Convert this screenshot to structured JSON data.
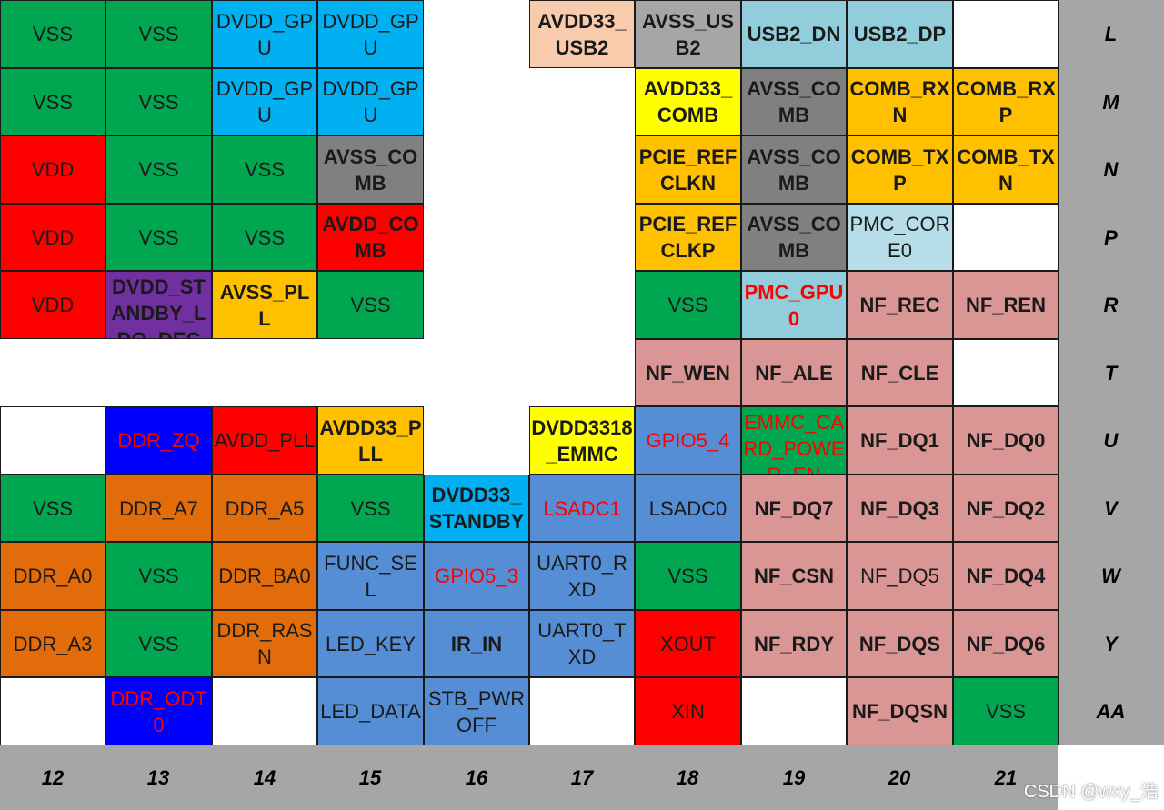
{
  "colors": {
    "green": "#00a650",
    "lightblue": "#00b0f0",
    "peach": "#f8cbad",
    "gray": "#a6a6a6",
    "darkgray": "#808080",
    "skyblue": "#92cddc",
    "paleblue": "#b7dde8",
    "white": "#ffffff",
    "yellow": "#ffff00",
    "gold": "#ffc000",
    "red": "#ff0000",
    "purple": "#7030a0",
    "pink": "#d99694",
    "blue": "#0000ff",
    "orange": "#e26b0a",
    "steel": "#558ed5",
    "textred": "#ff0000",
    "textdark": "#1a1a1a"
  },
  "columns": [
    "12",
    "13",
    "14",
    "15",
    "16",
    "17",
    "18",
    "19",
    "20",
    "21"
  ],
  "rows": [
    "L",
    "M",
    "N",
    "P",
    "R",
    "T",
    "U",
    "V",
    "W",
    "Y",
    "AA"
  ],
  "cells": [
    [
      "VSS|green|n|d",
      "VSS|green|n|d",
      "DVDD_GPU|lightblue|n|d",
      "DVDD_GPU|lightblue|n|d",
      null,
      "AVDD33_USB2|peach|b|d",
      "AVSS_USB2|gray|b|d",
      "USB2_DN|skyblue|b|d",
      "USB2_DP|skyblue|b|d",
      "|white|n|d"
    ],
    [
      "VSS|green|n|d",
      "VSS|green|n|d",
      "DVDD_GPU|lightblue|n|d",
      "DVDD_GPU|lightblue|n|d",
      null,
      null,
      "AVDD33_COMB|yellow|b|d",
      "AVSS_COMB|darkgray|b|d",
      "COMB_RXN|gold|b|d",
      "COMB_RXP|gold|b|d"
    ],
    [
      "VDD|red|n|d",
      "VSS|green|n|d",
      "VSS|green|n|d",
      "AVSS_COMB|darkgray|b|d",
      null,
      null,
      "PCIE_REFCLKN|gold|b|d",
      "AVSS_COMB|darkgray|b|d",
      "COMB_TXP|gold|b|d",
      "COMB_TXN|gold|b|d"
    ],
    [
      "VDD|red|n|d",
      "VSS|green|n|d",
      "VSS|green|n|d",
      "AVDD_COMB|red|b|d",
      null,
      null,
      "PCIE_REFCLKP|gold|b|d",
      "AVSS_COMB|darkgray|b|d",
      "PMC_CORE0|paleblue|n|d",
      "|white|n|d"
    ],
    [
      "VDD|red|n|d",
      "DVDD_STANDBY_LDO_DEC|purple|b|d",
      "AVSS_PLL|gold|b|d",
      "VSS|green|n|d",
      null,
      null,
      "VSS|green|n|d",
      "PMC_GPU0|skyblue|b|r",
      "NF_REC|pink|b|d",
      "NF_REN|pink|b|d"
    ],
    [
      null,
      null,
      null,
      null,
      null,
      null,
      "NF_WEN|pink|b|d",
      "NF_ALE|pink|b|d",
      "NF_CLE|pink|b|d",
      "|white|n|d"
    ],
    [
      "|white|n|d",
      "DDR_ZQ|blue|n|r",
      "AVDD_PLL|red|n|d",
      "AVDD33_PLL|gold|b|d",
      null,
      "DVDD3318_EMMC|yellow|b|d",
      "GPIO5_4|steel|n|r",
      "EMMC_CARD_POWER_EN|green|n|r",
      "NF_DQ1|pink|b|d",
      "NF_DQ0|pink|b|d"
    ],
    [
      "VSS|green|n|d",
      "DDR_A7|orange|n|d",
      "DDR_A5|orange|n|d",
      "VSS|green|n|d",
      "DVDD33_STANDBY|lightblue|b|d",
      "LSADC1|steel|n|r",
      "LSADC0|steel|n|d",
      "NF_DQ7|pink|b|d",
      "NF_DQ3|pink|b|d",
      "NF_DQ2|pink|b|d"
    ],
    [
      "DDR_A0|orange|n|d",
      "VSS|green|n|d",
      "DDR_BA0|orange|n|d",
      "FUNC_SEL|steel|n|d",
      "GPIO5_3|steel|n|r",
      "UART0_RXD|steel|n|d",
      "VSS|green|n|d",
      "NF_CSN|pink|b|d",
      "NF_DQ5|pink|n|d",
      "NF_DQ4|pink|b|d"
    ],
    [
      "DDR_A3|orange|n|d",
      "VSS|green|n|d",
      "DDR_RASN|orange|n|d",
      "LED_KEY|steel|n|d",
      "IR_IN|steel|b|d",
      "UART0_TXD|steel|n|d",
      "XOUT|red|n|d",
      "NF_RDY|pink|b|d",
      "NF_DQS|pink|b|d",
      "NF_DQ6|pink|b|d"
    ],
    [
      "|white|n|d",
      "DDR_ODT0|blue|n|r",
      "|white|n|d",
      "LED_DATA|steel|n|d",
      "STB_PWROFF|steel|n|d",
      "|white|n|d",
      "XIN|red|n|d",
      "|white|n|d",
      "NF_DQSN|pink|b|d",
      "VSS|green|n|d"
    ]
  ],
  "watermark": "CSDN @wxy_浩"
}
